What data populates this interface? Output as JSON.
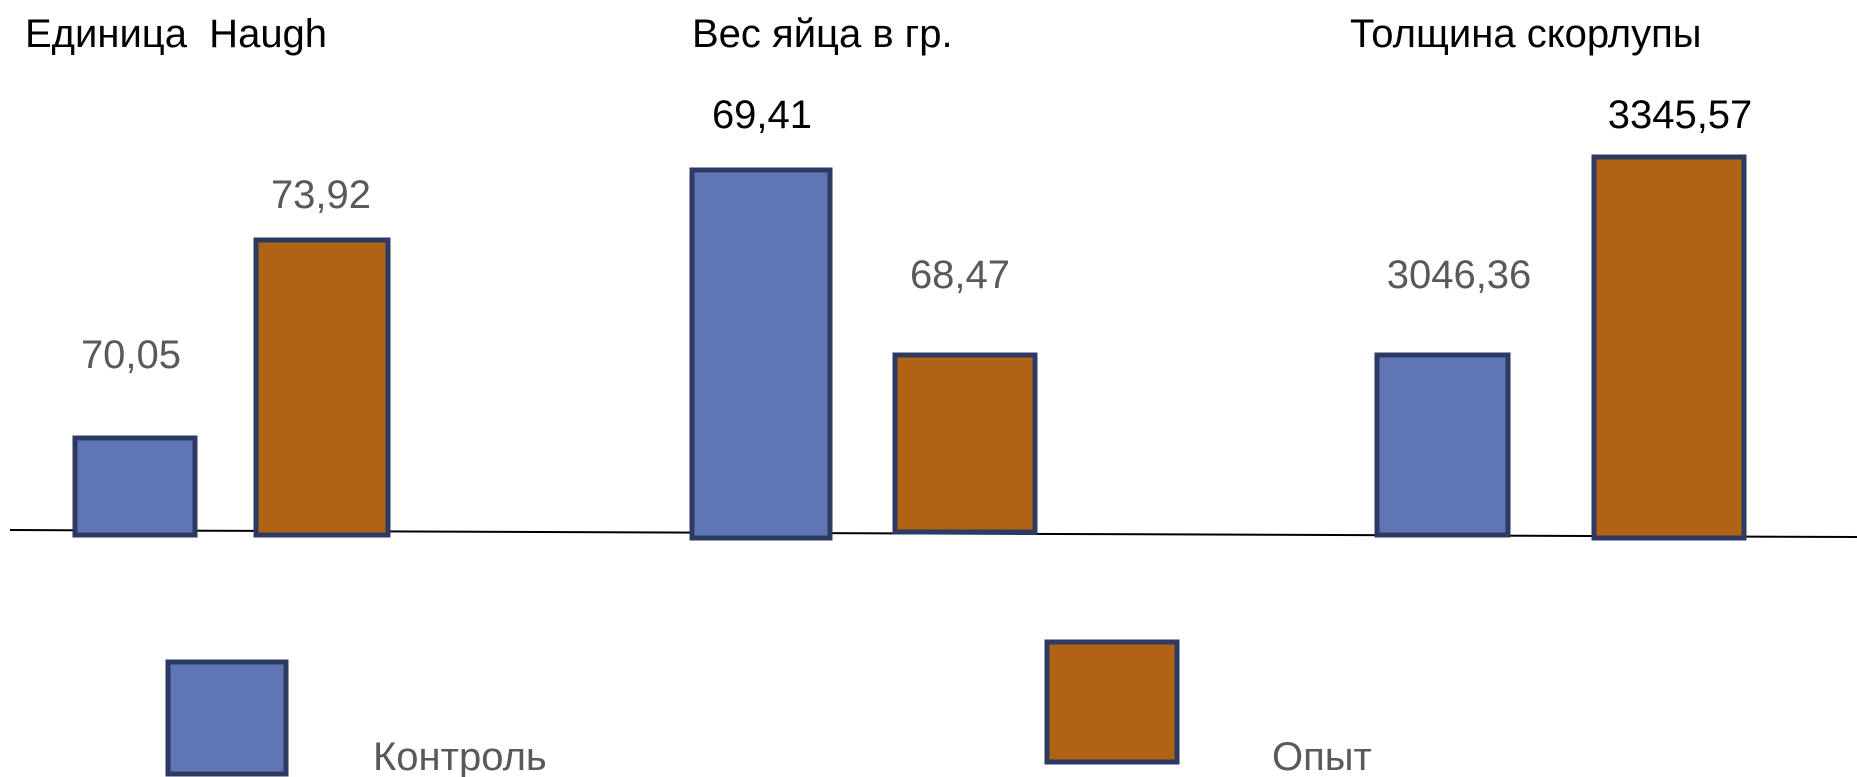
{
  "chart_data": {
    "type": "bar",
    "groups": [
      {
        "title": "Единица  Haugh",
        "bars": [
          {
            "series": "Контроль",
            "value": 70.05,
            "label": "70,05"
          },
          {
            "series": "Опыт",
            "value": 73.92,
            "label": "73,92"
          }
        ]
      },
      {
        "title": "Вес яйца в гр.",
        "bars": [
          {
            "series": "Контроль",
            "value": 69.41,
            "label": "69,41"
          },
          {
            "series": "Опыт",
            "value": 68.47,
            "label": "68,47"
          }
        ]
      },
      {
        "title": "Толщина скорлупы",
        "bars": [
          {
            "series": "Контроль",
            "value": 3046.36,
            "label": "3046,36"
          },
          {
            "series": "Опыт",
            "value": 3345.57,
            "label": "3345,57"
          }
        ]
      }
    ],
    "series": [
      {
        "name": "Контроль",
        "color": "#6076b4"
      },
      {
        "name": "Опыт",
        "color": "#b06215"
      }
    ],
    "legend_position": "bottom",
    "grid": false
  }
}
